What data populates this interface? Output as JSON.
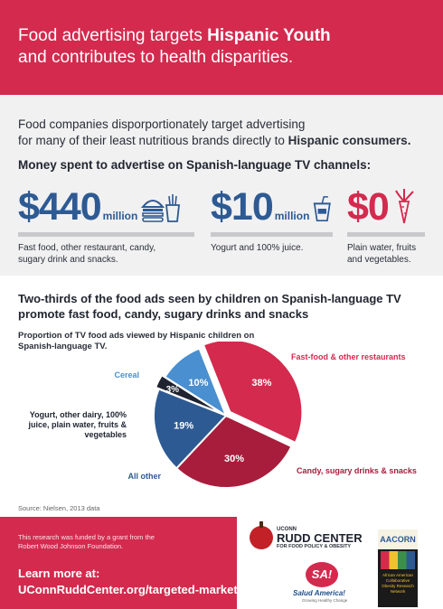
{
  "header": {
    "line1_pre": "Food advertising targets ",
    "line1_bold": "Hispanic Youth",
    "line2": "and contributes to health disparities."
  },
  "intro": {
    "line1": "Food companies disporportionately target advertising",
    "line2_pre": "for many of their least nutritious brands directly to ",
    "line2_bold": "Hispanic consumers.",
    "money_heading": "Money spent to advertise on Spanish-language TV channels:"
  },
  "stats": [
    {
      "amount": "$440",
      "unit": "million",
      "desc_line1": "Fast food, other restaurant, candy,",
      "desc_line2": "sugary drink and snacks.",
      "icon": "burger-fries-icon"
    },
    {
      "amount": "$10",
      "unit": "million",
      "desc_line1": "Yogurt and 100% juice.",
      "desc_line2": "",
      "icon": "juice-cup-icon"
    },
    {
      "amount": "$0",
      "unit": "",
      "desc_line1": "Plain water, fruits",
      "desc_line2": "and vegetables.",
      "icon": "carrot-icon"
    }
  ],
  "pie_section": {
    "heading_line1": "Two-thirds of the food ads seen by children on Spanish-language TV",
    "heading_line2": "promote fast food, candy, sugary drinks and snacks",
    "subtitle_line1": "Proportion of TV food ads viewed by Hispanic children on",
    "subtitle_line2": "Spanish-language TV."
  },
  "chart_data": {
    "type": "pie",
    "title": "Proportion of TV food ads viewed by Hispanic children on Spanish-language TV.",
    "slices": [
      {
        "label": "Fast-food & other restaurants",
        "value": 38,
        "display": "38%",
        "color": "#d42a4e"
      },
      {
        "label": "Candy, sugary drinks & snacks",
        "value": 30,
        "display": "30%",
        "color": "#a81d3c"
      },
      {
        "label": "All other",
        "value": 19,
        "display": "19%",
        "color": "#2d5a93"
      },
      {
        "label_lines": [
          "Yogurt, other dairy, 100%",
          "juice, plain water, fruits &",
          "vegetables"
        ],
        "value": 3,
        "display": "3%",
        "color": "#1f2330"
      },
      {
        "label": "Cereal",
        "value": 10,
        "display": "10%",
        "color": "#4a8fcf"
      }
    ]
  },
  "source": "Source: Nielsen, 2013 data",
  "footer": {
    "funding_line1": "This research was funded by a grant from the",
    "funding_line2": "Robert Wood Johnson Foundation.",
    "learn": "Learn more at:",
    "url": "UConnRuddCenter.org/targeted-marketing"
  },
  "logos": {
    "rudd_uconn": "UCONN",
    "rudd_name": "RUDD CENTER",
    "rudd_sub": "FOR FOOD POLICY & OBESITY",
    "salud_badge": "SA!",
    "salud_name": "Salud America!",
    "salud_sub": "Growing Healthy Change",
    "aacorn_top": "AACORN",
    "aacorn_small": "African American Collaborative Obesity Research Network"
  },
  "colors": {
    "brand_red": "#d42a4e",
    "brand_blue": "#2d5a93",
    "panel_gray": "#f1f1f2"
  }
}
